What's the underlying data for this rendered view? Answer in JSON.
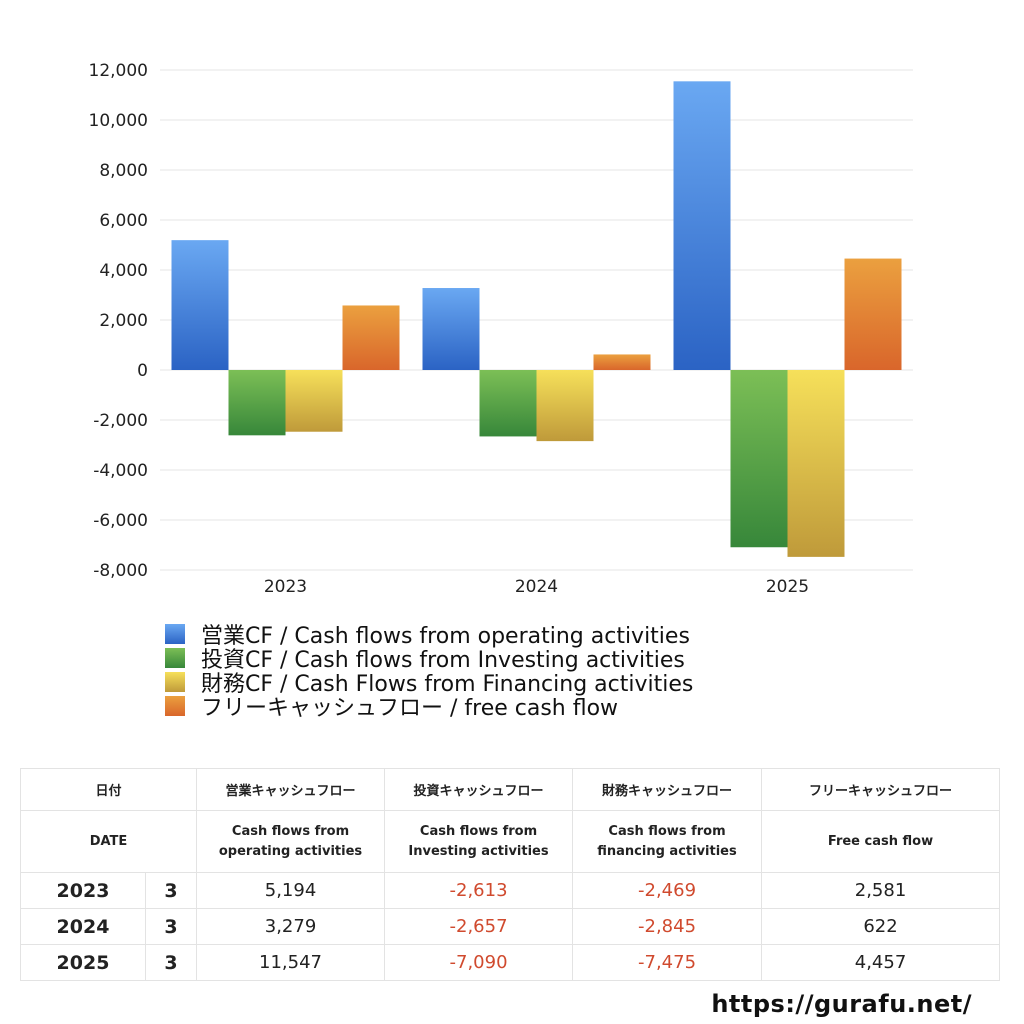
{
  "chart_data": {
    "type": "bar",
    "categories": [
      "2023",
      "2024",
      "2025"
    ],
    "ylim": [
      -8000,
      12000
    ],
    "yticks": [
      12000,
      10000,
      8000,
      6000,
      4000,
      2000,
      0,
      -2000,
      -4000,
      -6000,
      -8000
    ],
    "ytick_labels": [
      "12,000",
      "10,000",
      "8,000",
      "6,000",
      "4,000",
      "2,000",
      "0",
      "-2,000",
      "-4,000",
      "-6,000",
      "-8,000"
    ],
    "grid": true,
    "legend_position": "bottom",
    "series": [
      {
        "name": "営業CF / Cash flows from operating activities",
        "values": [
          5194,
          3279,
          11547
        ],
        "color_top": "#6aa8f2",
        "color_bottom": "#2b63c4"
      },
      {
        "name": "投資CF / Cash flows from Investing activities",
        "values": [
          -2613,
          -2657,
          -7090
        ],
        "color_top": "#7cbf56",
        "color_bottom": "#37873a"
      },
      {
        "name": "財務CF / Cash Flows from Financing activities",
        "values": [
          -2469,
          -2845,
          -7475
        ],
        "color_top": "#f6e05a",
        "color_bottom": "#bf9a3a"
      },
      {
        "name": "フリーキャッシュフロー / free cash flow",
        "values": [
          2581,
          622,
          4457
        ],
        "color_top": "#eba03f",
        "color_bottom": "#d9662b"
      }
    ]
  },
  "table": {
    "header_jp": [
      "日付",
      "",
      "営業キャッシュフロー",
      "投資キャッシュフロー",
      "財務キャッシュフロー",
      "フリーキャッシュフロー"
    ],
    "header_en": [
      "DATE",
      "",
      "Cash flows from\noperating activities",
      "Cash flows from\nInvesting activities",
      "Cash flows from\nfinancing activities",
      "Free cash flow"
    ],
    "rows": [
      {
        "year": "2023",
        "month": "3",
        "op": "5,194",
        "inv": "-2,613",
        "fin": "-2,469",
        "free": "2,581"
      },
      {
        "year": "2024",
        "month": "3",
        "op": "3,279",
        "inv": "-2,657",
        "fin": "-2,845",
        "free": "622"
      },
      {
        "year": "2025",
        "month": "3",
        "op": "11,547",
        "inv": "-7,090",
        "fin": "-7,475",
        "free": "4,457"
      }
    ],
    "negative_color": "#d04a2e"
  },
  "footer": {
    "url": "https://gurafu.net/"
  }
}
